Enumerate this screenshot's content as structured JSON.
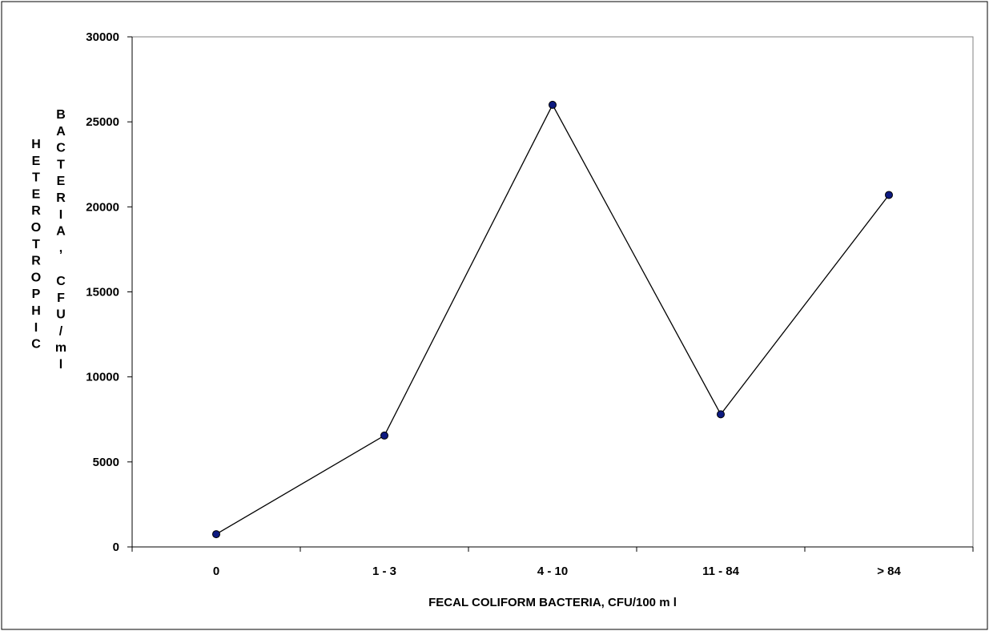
{
  "chart_data": {
    "type": "line",
    "title": "",
    "xlabel": "FECAL COLIFORM BACTERIA, CFU/100 m l",
    "ylabel_lines": [
      "HETEROTROPHIC",
      "BACTERIA, CFU/ml"
    ],
    "categories": [
      "0",
      "1 - 3",
      "4 - 10",
      "11 - 84",
      "> 84"
    ],
    "series": [
      {
        "values": [
          750,
          6550,
          26000,
          7800,
          20700
        ]
      }
    ],
    "ylim": [
      0,
      30000
    ],
    "yticks": [
      0,
      5000,
      10000,
      15000,
      20000,
      25000,
      30000
    ],
    "grid": false,
    "legend": "none",
    "colors": {
      "line": "#000000",
      "marker": "#0d1a80",
      "marker_edge": "#000000"
    }
  }
}
